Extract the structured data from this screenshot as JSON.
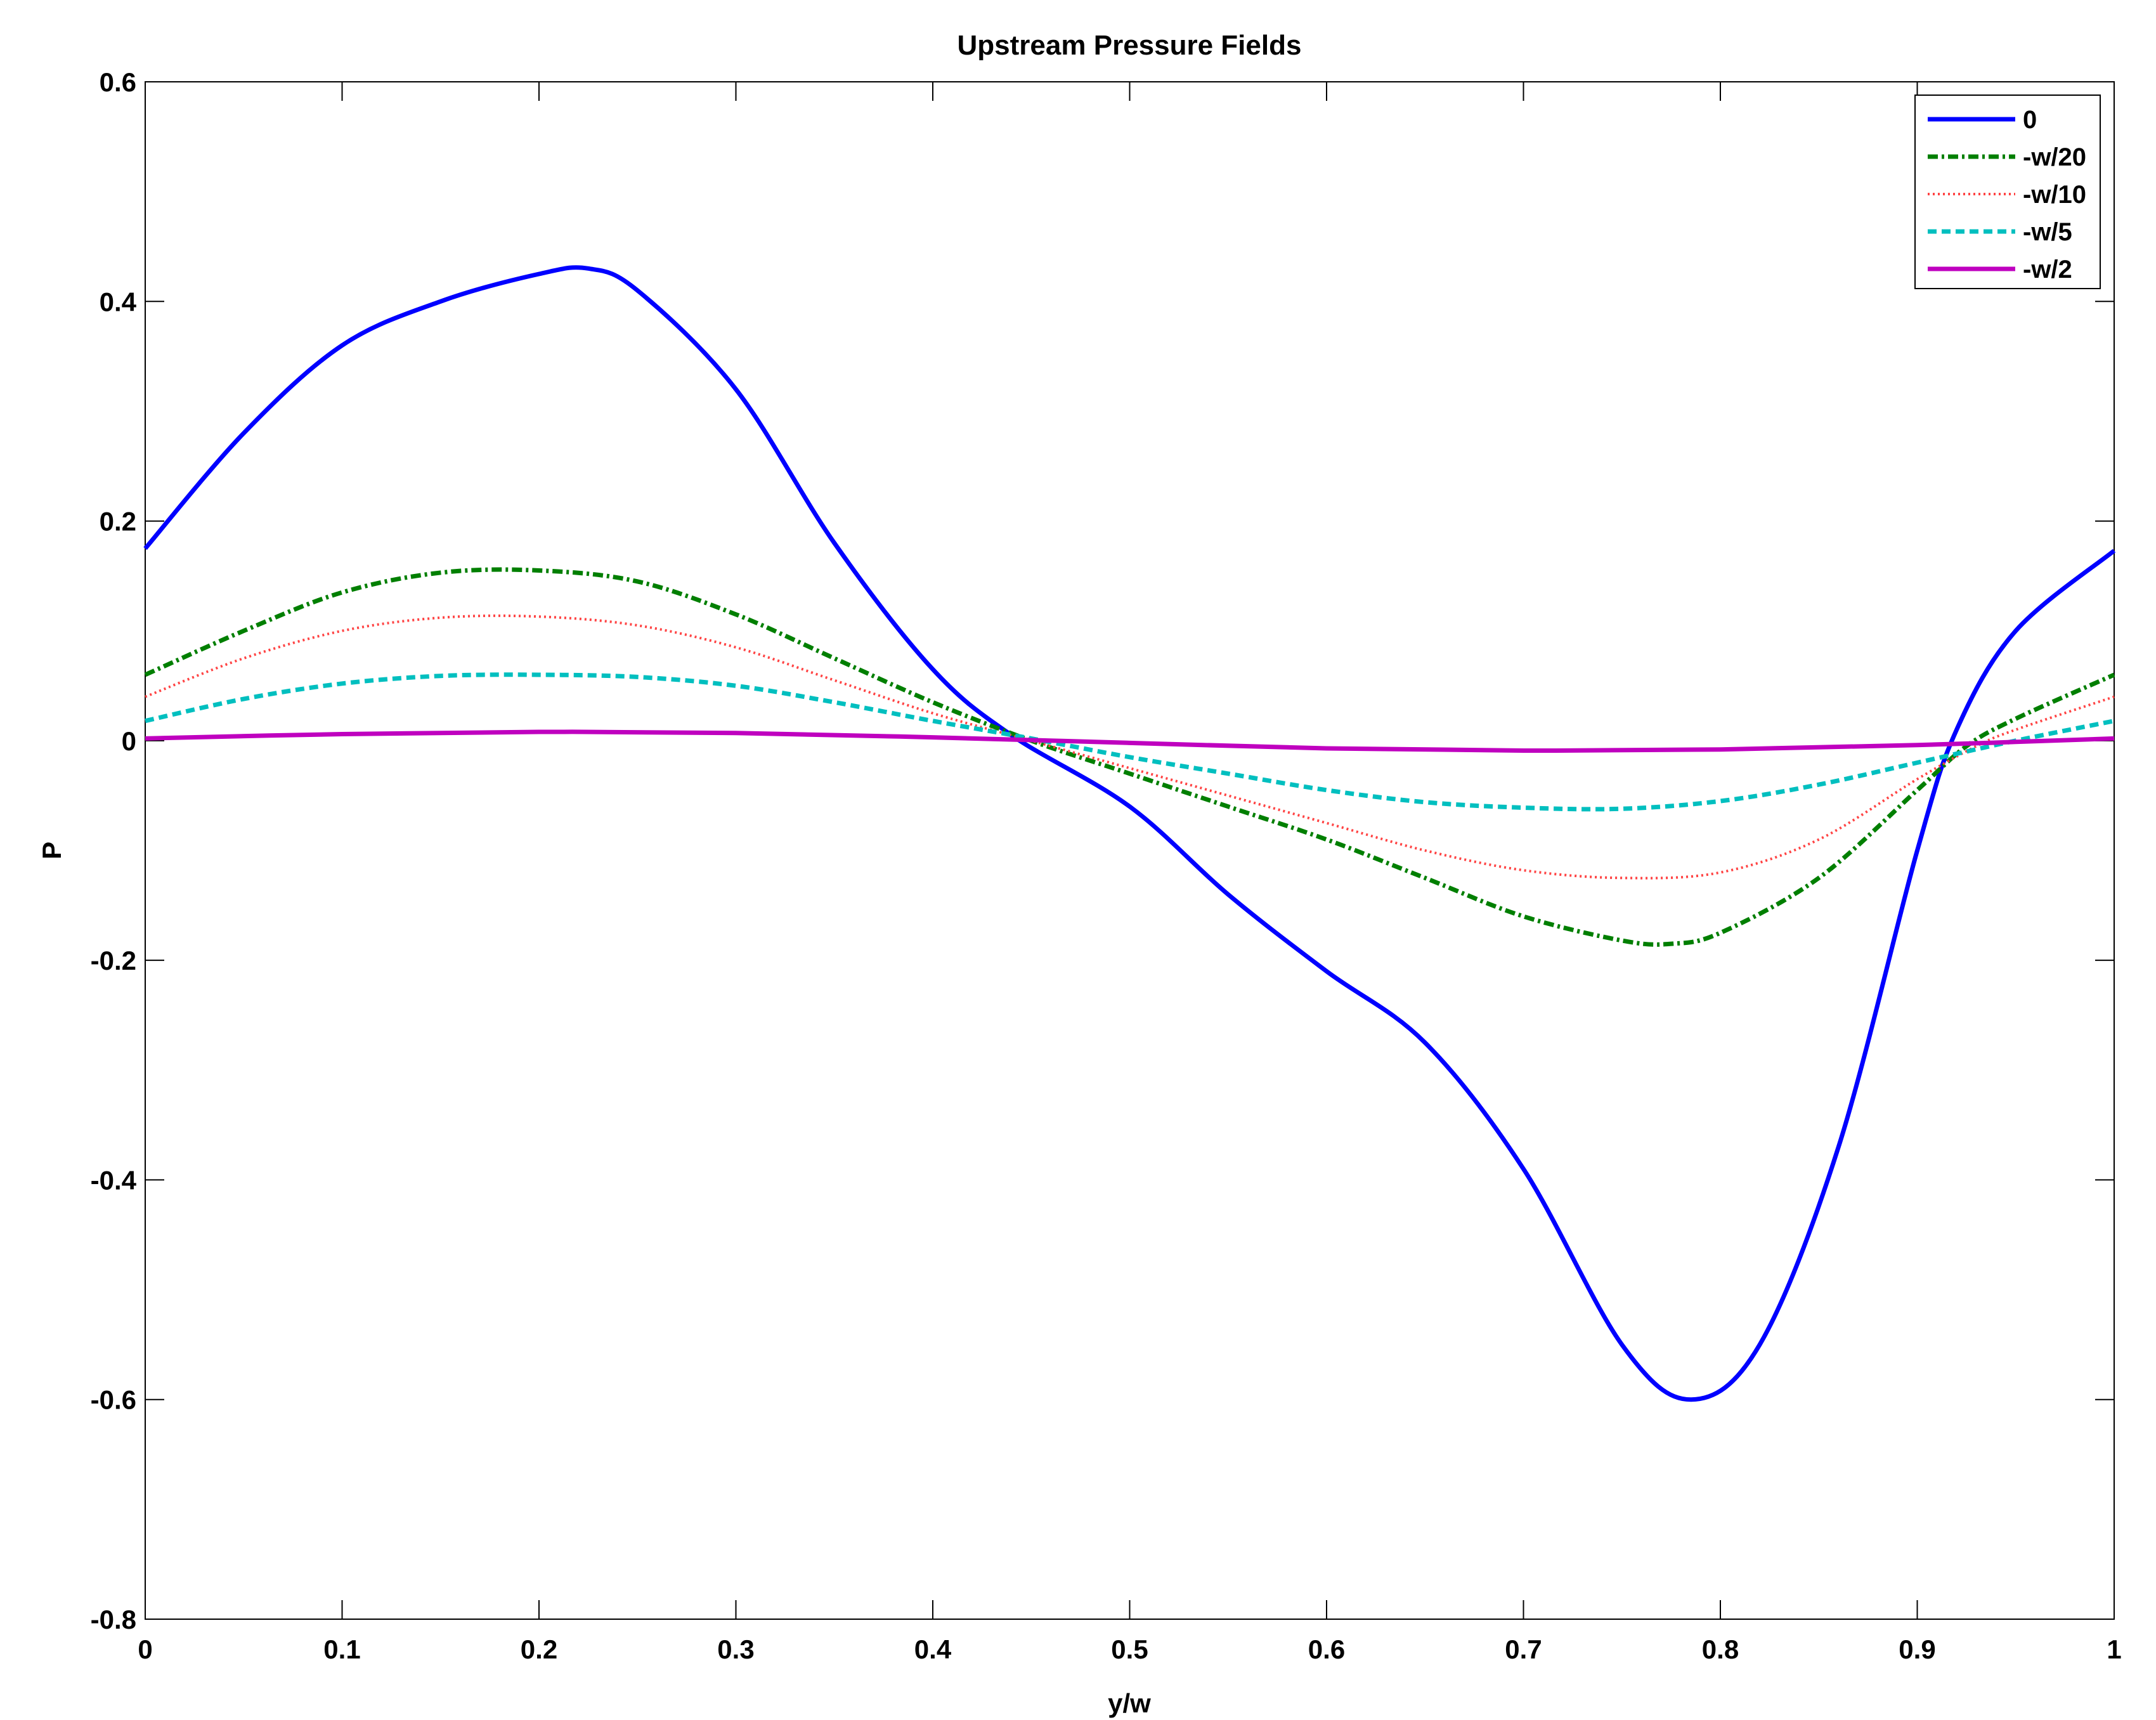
{
  "chart_data": {
    "type": "line",
    "title": "Upstream Pressure Fields",
    "xlabel": "y/w",
    "ylabel": "P",
    "xlim": [
      0,
      1
    ],
    "ylim": [
      -0.8,
      0.6
    ],
    "xticks": [
      0,
      0.1,
      0.2,
      0.3,
      0.4,
      0.5,
      0.6,
      0.7,
      0.8,
      0.9,
      1
    ],
    "xtick_labels": [
      "0",
      "0.1",
      "0.2",
      "0.3",
      "0.4",
      "0.5",
      "0.6",
      "0.7",
      "0.8",
      "0.9",
      "1"
    ],
    "yticks": [
      -0.8,
      -0.6,
      -0.4,
      -0.2,
      0,
      0.2,
      0.4,
      0.6
    ],
    "ytick_labels": [
      "-0.8",
      "-0.6",
      "-0.4",
      "-0.2",
      "0",
      "0.2",
      "0.4",
      "0.6"
    ],
    "grid": false,
    "legend_position": "top-right",
    "series": [
      {
        "name": "0",
        "color": "#0000ff",
        "style": "solid",
        "x": [
          0,
          0.05,
          0.1,
          0.15,
          0.2,
          0.225,
          0.25,
          0.3,
          0.35,
          0.4,
          0.44,
          0.5,
          0.55,
          0.6,
          0.65,
          0.7,
          0.75,
          0.785,
          0.82,
          0.86,
          0.9,
          0.92,
          0.95,
          1.0
        ],
        "y": [
          0.175,
          0.28,
          0.36,
          0.4,
          0.425,
          0.43,
          0.41,
          0.32,
          0.18,
          0.065,
          0.005,
          -0.06,
          -0.14,
          -0.21,
          -0.275,
          -0.39,
          -0.55,
          -0.6,
          -0.55,
          -0.37,
          -0.1,
          0.01,
          0.1,
          0.173
        ]
      },
      {
        "name": "-w/20",
        "color": "#007f00",
        "style": "dash-dot",
        "x": [
          0,
          0.05,
          0.1,
          0.15,
          0.2,
          0.25,
          0.3,
          0.35,
          0.4,
          0.45,
          0.5,
          0.55,
          0.6,
          0.65,
          0.7,
          0.75,
          0.775,
          0.8,
          0.85,
          0.9,
          0.925,
          0.95,
          1.0
        ],
        "y": [
          0.06,
          0.1,
          0.135,
          0.153,
          0.155,
          0.145,
          0.115,
          0.075,
          0.035,
          0.0,
          -0.03,
          -0.06,
          -0.09,
          -0.125,
          -0.16,
          -0.182,
          -0.185,
          -0.175,
          -0.125,
          -0.045,
          -0.005,
          0.02,
          0.06
        ]
      },
      {
        "name": "-w/10",
        "color": "#ff4444",
        "style": "dotted",
        "x": [
          0,
          0.05,
          0.1,
          0.15,
          0.2,
          0.25,
          0.3,
          0.35,
          0.4,
          0.45,
          0.5,
          0.55,
          0.6,
          0.65,
          0.7,
          0.75,
          0.8,
          0.85,
          0.9,
          0.93,
          0.95,
          1.0
        ],
        "y": [
          0.04,
          0.075,
          0.1,
          0.112,
          0.113,
          0.105,
          0.085,
          0.055,
          0.025,
          0.0,
          -0.025,
          -0.05,
          -0.075,
          -0.1,
          -0.118,
          -0.125,
          -0.12,
          -0.09,
          -0.035,
          -0.005,
          0.01,
          0.04
        ]
      },
      {
        "name": "-w/5",
        "color": "#00bfbf",
        "style": "dashed",
        "x": [
          0,
          0.05,
          0.1,
          0.15,
          0.2,
          0.25,
          0.3,
          0.35,
          0.4,
          0.45,
          0.5,
          0.55,
          0.6,
          0.65,
          0.7,
          0.75,
          0.8,
          0.85,
          0.9,
          0.95,
          1.0
        ],
        "y": [
          0.018,
          0.038,
          0.052,
          0.059,
          0.06,
          0.058,
          0.05,
          0.035,
          0.018,
          0.002,
          -0.015,
          -0.03,
          -0.045,
          -0.056,
          -0.061,
          -0.062,
          -0.055,
          -0.04,
          -0.02,
          0.0,
          0.018
        ]
      },
      {
        "name": "-w/2",
        "color": "#bf00bf",
        "style": "solid",
        "x": [
          0,
          0.1,
          0.2,
          0.3,
          0.4,
          0.5,
          0.6,
          0.7,
          0.8,
          0.9,
          1.0
        ],
        "y": [
          0.002,
          0.006,
          0.008,
          0.007,
          0.003,
          -0.002,
          -0.007,
          -0.009,
          -0.008,
          -0.004,
          0.002
        ]
      }
    ]
  }
}
